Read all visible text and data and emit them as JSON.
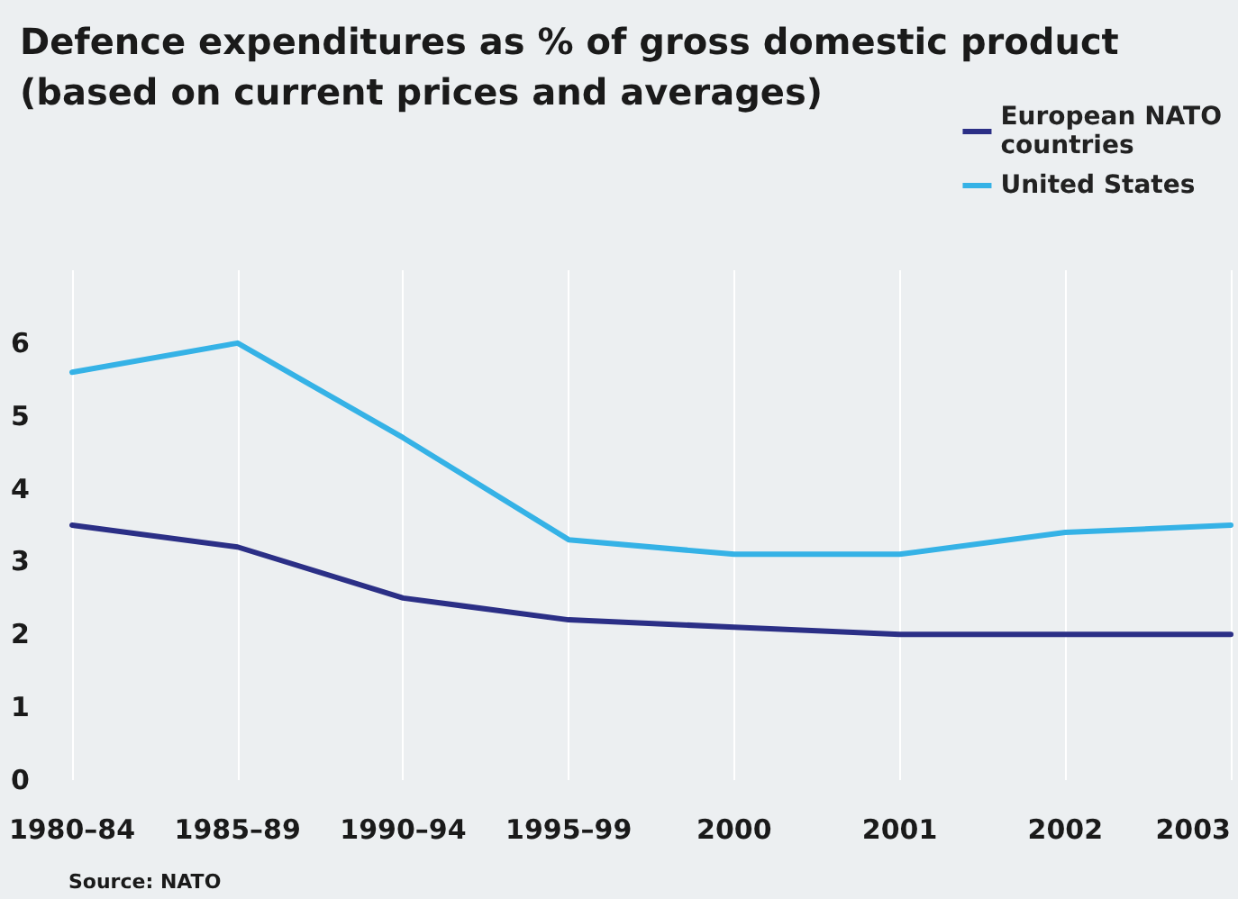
{
  "chart_data": {
    "type": "line",
    "title": "Defence expenditures as % of gross domestic product\n(based on current prices and averages)",
    "categories": [
      "1980–84",
      "1985–89",
      "1990–94",
      "1995–99",
      "2000",
      "2001",
      "2002",
      "2003"
    ],
    "series": [
      {
        "name": "European NATO\ncountries",
        "color": "#2b2f86",
        "values": [
          3.5,
          3.2,
          2.5,
          2.2,
          2.1,
          2.0,
          2.0,
          2.0
        ]
      },
      {
        "name": "United States",
        "color": "#35b2e6",
        "values": [
          5.6,
          6.0,
          4.7,
          3.3,
          3.1,
          3.1,
          3.4,
          3.5
        ]
      }
    ],
    "ylim": [
      0,
      7
    ],
    "yticks": [
      0,
      1,
      2,
      3,
      4,
      5,
      6
    ],
    "grid": "x",
    "legend": "top right",
    "marker": "none",
    "line_style": "solid",
    "annotations": [
      "Source: NATO"
    ]
  }
}
